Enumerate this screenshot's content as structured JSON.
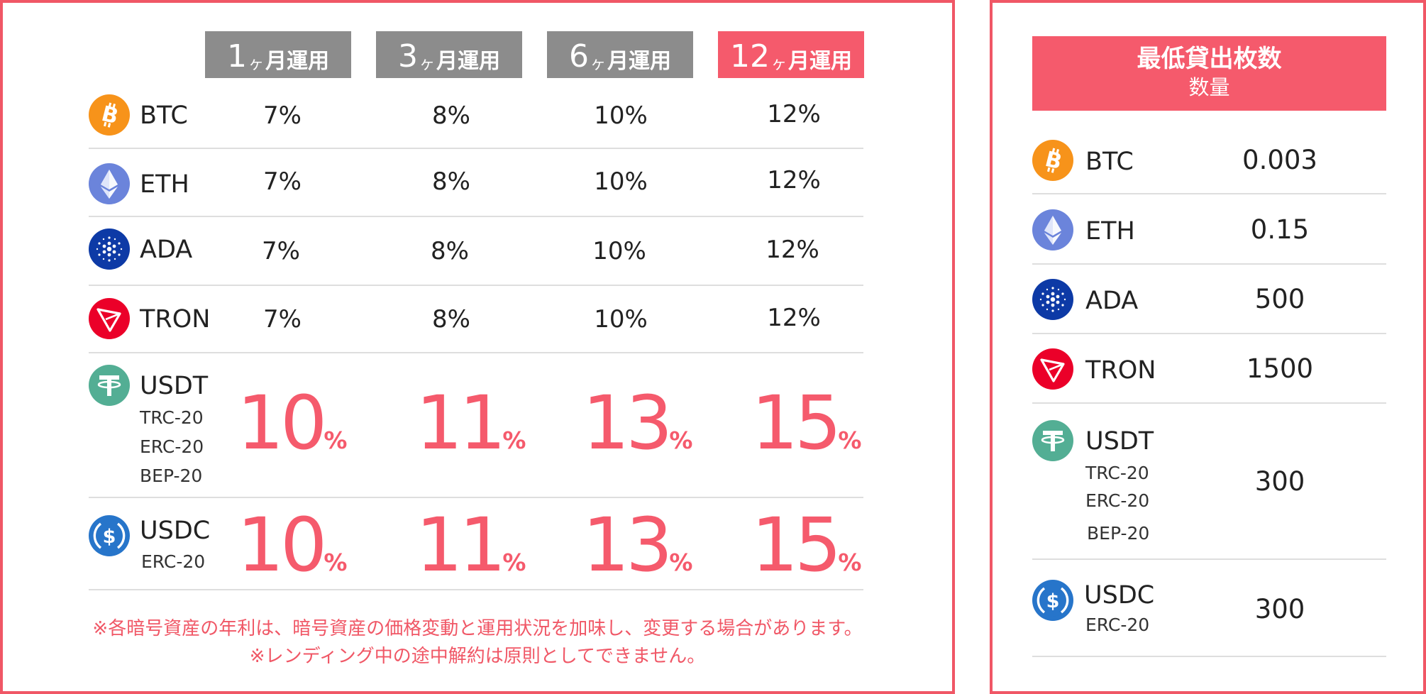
{
  "colors": {
    "accent": "#f55a6c",
    "border": "#f05766",
    "tab_gray": "#8c8c8c",
    "divider": "#dedede"
  },
  "rates_table": {
    "tabs": [
      {
        "num": "1",
        "ka": "ヶ",
        "word": "月運用",
        "active": false
      },
      {
        "num": "3",
        "ka": "ヶ",
        "word": "月運用",
        "active": false
      },
      {
        "num": "6",
        "ka": "ヶ",
        "word": "月運用",
        "active": false
      },
      {
        "num": "12",
        "ka": "ヶ",
        "word": "月運用",
        "active": true
      }
    ],
    "rows": [
      {
        "icon": "bitcoin-icon",
        "symbol": "BTC",
        "rates": [
          "7%",
          "8%",
          "10%",
          "12%"
        ]
      },
      {
        "icon": "ethereum-icon",
        "symbol": "ETH",
        "rates": [
          "7%",
          "8%",
          "10%",
          "12%"
        ]
      },
      {
        "icon": "cardano-icon",
        "symbol": "ADA",
        "rates": [
          "7%",
          "8%",
          "10%",
          "12%"
        ]
      },
      {
        "icon": "tron-icon",
        "symbol": "TRON",
        "rates": [
          "7%",
          "8%",
          "10%",
          "12%"
        ]
      },
      {
        "icon": "tether-icon",
        "symbol": "USDT",
        "networks": [
          "TRC-20",
          "ERC-20",
          "BEP-20"
        ],
        "rates": [
          "10",
          "11",
          "13",
          "15"
        ],
        "unit": "%"
      },
      {
        "icon": "usdc-icon",
        "symbol": "USDC",
        "networks": [
          "ERC-20"
        ],
        "rates": [
          "10",
          "11",
          "13",
          "15"
        ],
        "unit": "%"
      }
    ],
    "notes": [
      "※各暗号資産の年利は、暗号資産の価格変動と運用状況を加味し、変更する場合があります。",
      "※レンディング中の途中解約は原則としてできません。"
    ]
  },
  "minimum_table": {
    "title": "最低貸出枚数",
    "subtitle": "数量",
    "rows": [
      {
        "icon": "bitcoin-icon",
        "symbol": "BTC",
        "amount": "0.003"
      },
      {
        "icon": "ethereum-icon",
        "symbol": "ETH",
        "amount": "0.15"
      },
      {
        "icon": "cardano-icon",
        "symbol": "ADA",
        "amount": "500"
      },
      {
        "icon": "tron-icon",
        "symbol": "TRON",
        "amount": "1500"
      },
      {
        "icon": "tether-icon",
        "symbol": "USDT",
        "networks": [
          "TRC-20",
          "ERC-20",
          "BEP-20"
        ],
        "amount": "300"
      },
      {
        "icon": "usdc-icon",
        "symbol": "USDC",
        "networks": [
          "ERC-20"
        ],
        "amount": "300"
      }
    ]
  }
}
